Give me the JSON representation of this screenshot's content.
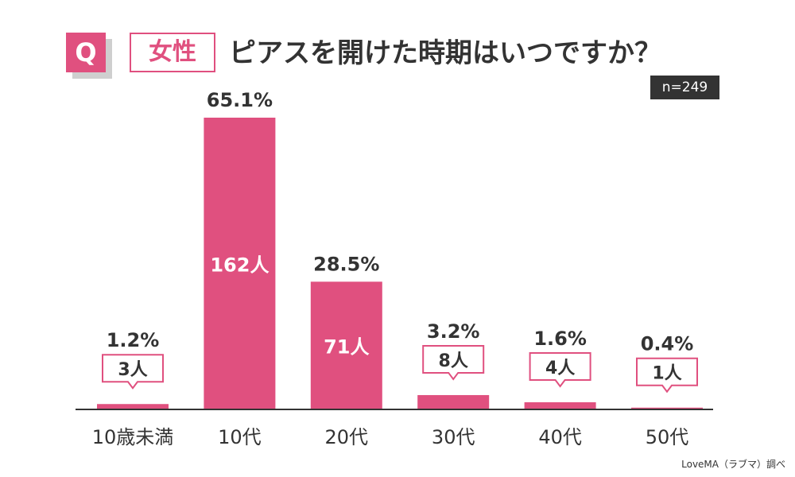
{
  "header": {
    "q_label": "Q",
    "tag": "女性",
    "title": "ピアスを開けた時期はいつですか？",
    "n": "n=249"
  },
  "source": "LoveMA（ラブマ）調べ",
  "colors": {
    "bar": "#e0507f",
    "text": "#333333",
    "axis": "#333333"
  },
  "chart_data": {
    "type": "bar",
    "categories": [
      "10歳未満",
      "10代",
      "20代",
      "30代",
      "40代",
      "50代"
    ],
    "values": [
      1.2,
      65.1,
      28.5,
      3.2,
      1.6,
      0.4
    ],
    "value_labels": [
      "1.2%",
      "65.1%",
      "28.5%",
      "3.2%",
      "1.6%",
      "0.4%"
    ],
    "counts": [
      "3人",
      "162人",
      "71人",
      "8人",
      "4人",
      "1人"
    ],
    "unit": "%",
    "ylim": [
      0,
      70
    ],
    "grid": false,
    "legend": "none"
  }
}
